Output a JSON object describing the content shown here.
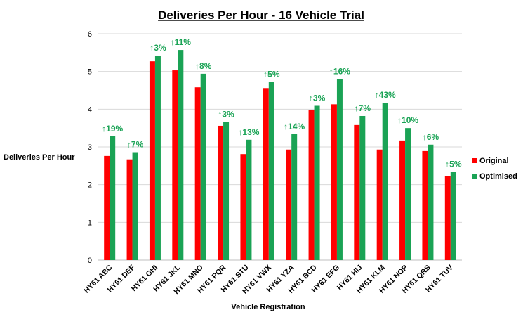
{
  "chart_data": {
    "type": "bar",
    "title": "Deliveries Per Hour - 16 Vehicle Trial",
    "xlabel": "Vehicle Registration",
    "ylabel": "Deliveries Per Hour",
    "ylim": [
      0,
      6
    ],
    "yticks": [
      "0",
      "1",
      "2",
      "3",
      "4",
      "5",
      "6"
    ],
    "grid": true,
    "legend_position": "right",
    "categories": [
      "HY61 ABC",
      "HY61 DEF",
      "HY61 GHI",
      "HY61 JKL",
      "HY61 MNO",
      "HY61 PQR",
      "HY61 STU",
      "HY61 VWX",
      "HY61 YZA",
      "HY61 BCD",
      "HY61 EFG",
      "HY61 HIJ",
      "HY61 KLM",
      "HY61 NOP",
      "HY61 QRS",
      "HY61 TUV"
    ],
    "series": [
      {
        "name": "Original",
        "color": "#ff0000",
        "values": [
          2.76,
          2.67,
          5.27,
          5.03,
          4.58,
          3.56,
          2.81,
          4.56,
          2.93,
          3.97,
          4.13,
          3.58,
          2.93,
          3.17,
          2.89,
          2.22
        ]
      },
      {
        "name": "Optimised",
        "color": "#1aa355",
        "values": [
          3.28,
          2.86,
          5.42,
          5.57,
          4.94,
          3.66,
          3.19,
          4.72,
          3.34,
          4.09,
          4.8,
          3.82,
          4.17,
          3.5,
          3.06,
          2.34
        ]
      }
    ],
    "annotations": [
      "↑19%",
      "↑7%",
      "↑3%",
      "↑11%",
      "↑8%",
      "↑3%",
      "↑13%",
      "↑5%",
      "↑14%",
      "↑3%",
      "↑16%",
      "↑7%",
      "↑43%",
      "↑10%",
      "↑6%",
      "↑5%"
    ],
    "annotation_color": "#1aa355"
  }
}
